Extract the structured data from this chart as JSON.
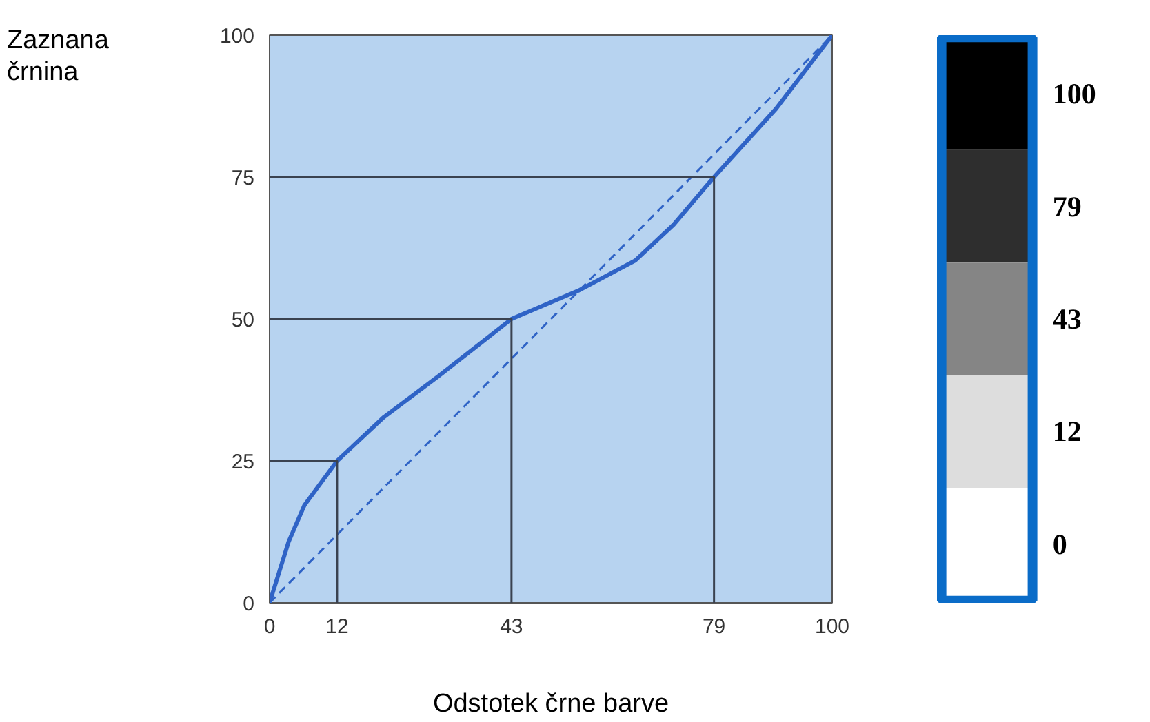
{
  "chart_data": [
    {
      "type": "line",
      "xlabel": "Odstotek črne barve",
      "ylabel": "Zaznana črnina",
      "x": [
        0,
        3.4,
        6.2,
        12,
        20.3,
        30,
        43,
        54.9,
        65,
        71.8,
        79,
        90,
        100
      ],
      "xlim": [
        0,
        100
      ],
      "ylim": [
        0,
        100
      ],
      "xticks": [
        0,
        12,
        43,
        79,
        100
      ],
      "yticks": [
        0,
        25,
        50,
        75,
        100
      ],
      "grid": false,
      "marker": "none",
      "series": [
        {
          "color": "#2f63c6",
          "line_style": "solid",
          "values": [
            0,
            10.8,
            17.2,
            25,
            32.7,
            39.9,
            50,
            55,
            60.3,
            66.6,
            75,
            87,
            100
          ]
        },
        {
          "color": "#2f63c6",
          "line_style": "dashed",
          "x": [
            0,
            100
          ],
          "values": [
            0,
            100
          ]
        },
        {
          "color": "#3a4250",
          "line_style": "solid",
          "x": [
            0,
            12,
            12
          ],
          "values": [
            25,
            25,
            0
          ]
        },
        {
          "color": "#3a4250",
          "line_style": "solid",
          "x": [
            0,
            43,
            43
          ],
          "values": [
            50,
            50,
            0
          ]
        },
        {
          "color": "#3a4250",
          "line_style": "solid",
          "x": [
            0,
            79,
            79
          ],
          "values": [
            75,
            75,
            0
          ]
        }
      ]
    },
    {
      "type": "other",
      "values": [
        100,
        79,
        43,
        12,
        0
      ],
      "data_labels": true,
      "colors": [
        "#000000",
        "#2e2e2e",
        "#858585",
        "#dddddd",
        "#ffffff"
      ],
      "color": "#0a6cc8"
    }
  ]
}
